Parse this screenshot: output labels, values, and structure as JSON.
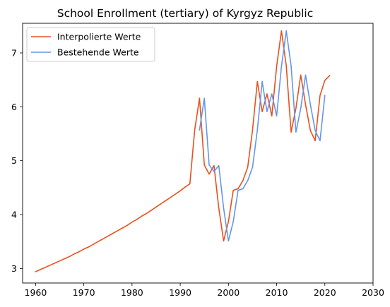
{
  "chart_data": {
    "type": "line",
    "title": "School Enrollment (tertiary) of Kyrgyz Republic",
    "xlabel": "",
    "ylabel": "",
    "xlim": [
      1957.3,
      2030
    ],
    "ylim": [
      2.73,
      7.55
    ],
    "xticks": [
      1960,
      1970,
      1980,
      1990,
      2000,
      2010,
      2020,
      2030
    ],
    "yticks": [
      3,
      4,
      5,
      6,
      7
    ],
    "grid": false,
    "legend": "top-left",
    "series": [
      {
        "name": "Interpolierte Werte",
        "color": "#e8501e",
        "x": [
          1960,
          1961,
          1962,
          1963,
          1964,
          1965,
          1966,
          1967,
          1968,
          1969,
          1970,
          1971,
          1972,
          1973,
          1974,
          1975,
          1976,
          1977,
          1978,
          1979,
          1980,
          1981,
          1982,
          1983,
          1984,
          1985,
          1986,
          1987,
          1988,
          1989,
          1990,
          1991,
          1992,
          1993,
          1994,
          1995,
          1996,
          1997,
          1998,
          1999,
          2000,
          2001,
          2002,
          2003,
          2004,
          2005,
          2006,
          2007,
          2008,
          2009,
          2010,
          2011,
          2012,
          2013,
          2014,
          2015,
          2016,
          2017,
          2018,
          2019,
          2020,
          2021,
          2022
        ],
        "y": [
          2.94,
          2.98,
          3.02,
          3.06,
          3.1,
          3.14,
          3.18,
          3.22,
          3.27,
          3.31,
          3.36,
          3.4,
          3.45,
          3.5,
          3.55,
          3.6,
          3.65,
          3.7,
          3.75,
          3.8,
          3.86,
          3.91,
          3.97,
          4.02,
          4.08,
          4.14,
          4.2,
          4.26,
          4.32,
          4.38,
          4.44,
          4.51,
          4.57,
          5.57,
          6.16,
          4.92,
          4.75,
          4.91,
          4.12,
          3.51,
          3.87,
          4.45,
          4.48,
          4.63,
          4.88,
          5.57,
          6.47,
          5.91,
          6.24,
          5.83,
          6.75,
          7.41,
          6.76,
          5.53,
          5.97,
          6.59,
          6.04,
          5.56,
          5.37,
          6.21,
          6.49,
          6.58,
          null
        ]
      },
      {
        "name": "Bestehende Werte",
        "color": "#6495ed",
        "x": [
          1994,
          1995,
          1996,
          1997,
          1998,
          1999,
          2000,
          2001,
          2002,
          2003,
          2004,
          2005,
          2006,
          2007,
          2008,
          2009,
          2010,
          2011,
          2012,
          2013,
          2014,
          2015,
          2016,
          2017,
          2018,
          2019,
          2020
        ],
        "y": [
          5.57,
          6.16,
          4.92,
          4.8,
          4.91,
          4.12,
          3.51,
          3.87,
          4.45,
          4.48,
          4.63,
          4.88,
          5.57,
          6.47,
          5.91,
          6.24,
          5.83,
          6.75,
          7.41,
          6.76,
          5.53,
          5.97,
          6.59,
          6.04,
          5.56,
          5.37,
          6.21
        ]
      }
    ]
  }
}
